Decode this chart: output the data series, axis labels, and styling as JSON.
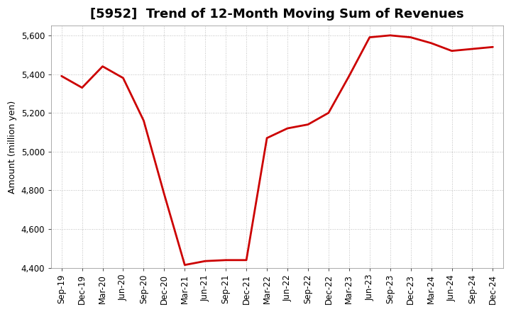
{
  "title": "[5952]  Trend of 12-Month Moving Sum of Revenues",
  "ylabel": "Amount (million yen)",
  "line_color": "#cc0000",
  "background_color": "#ffffff",
  "plot_bg_color": "#ffffff",
  "grid_color": "#aaaaaa",
  "x_labels": [
    "Sep-19",
    "Dec-19",
    "Mar-20",
    "Jun-20",
    "Sep-20",
    "Dec-20",
    "Mar-21",
    "Jun-21",
    "Sep-21",
    "Dec-21",
    "Mar-22",
    "Jun-22",
    "Sep-22",
    "Dec-22",
    "Mar-23",
    "Jun-23",
    "Sep-23",
    "Dec-23",
    "Mar-24",
    "Jun-24",
    "Sep-24",
    "Dec-24"
  ],
  "y_values": [
    5390,
    5330,
    5440,
    5380,
    5160,
    4780,
    4415,
    4435,
    4440,
    4440,
    5070,
    5120,
    5140,
    5200,
    5390,
    5590,
    5600,
    5590,
    5560,
    5520,
    5530,
    5540
  ],
  "ylim": [
    4400,
    5650
  ],
  "yticks": [
    4400,
    4600,
    4800,
    5000,
    5200,
    5400,
    5600
  ],
  "title_fontsize": 13,
  "axis_fontsize": 9,
  "tick_fontsize": 8.5,
  "line_width": 2.0
}
